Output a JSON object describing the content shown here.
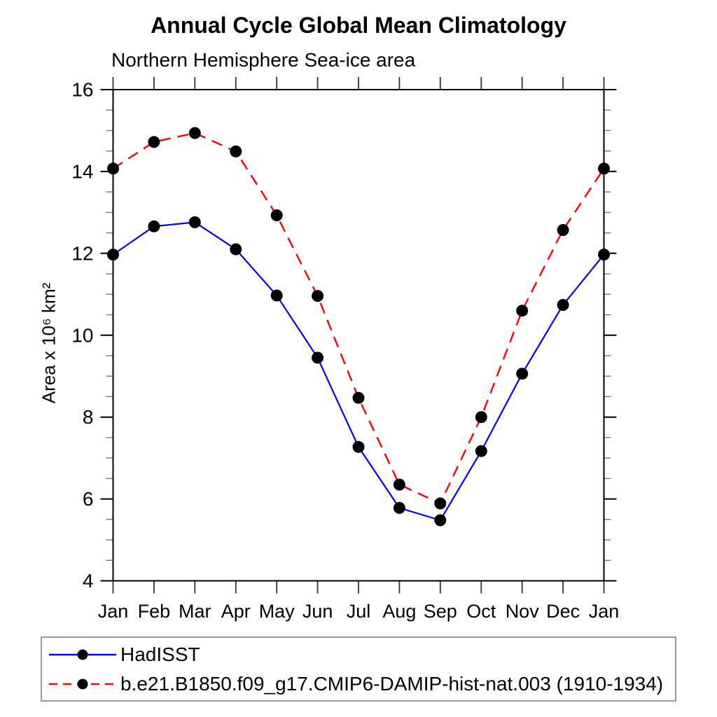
{
  "title": "Annual Cycle Global Mean Climatology",
  "subtitle": "Northern Hemisphere Sea-ice area",
  "chart_data": {
    "type": "line",
    "title": "Annual Cycle Global Mean Climatology",
    "subtitle": "Northern Hemisphere Sea-ice area",
    "ylabel": "Area x 10⁶ km²",
    "xlabel": "",
    "categories": [
      "Jan",
      "Feb",
      "Mar",
      "Apr",
      "May",
      "Jun",
      "Jul",
      "Aug",
      "Sep",
      "Oct",
      "Nov",
      "Dec",
      "Jan"
    ],
    "ylim": [
      4,
      16
    ],
    "ytick_labels": [
      4,
      6,
      8,
      10,
      12,
      14,
      16
    ],
    "ytick_minor_step": 0.5,
    "grid": false,
    "legend_position": "bottom",
    "series": [
      {
        "name": "HadISST",
        "color": "#0000ff",
        "style": "solid",
        "marker": "filled-circle",
        "marker_color": "#000000",
        "values": [
          11.97,
          12.66,
          12.76,
          12.1,
          10.97,
          9.45,
          7.27,
          5.78,
          5.48,
          7.17,
          9.06,
          10.74,
          11.97
        ]
      },
      {
        "name": "b.e21.B1850.f09_g17.CMIP6-DAMIP-hist-nat.003 (1910-1934)",
        "color": "#ff0000",
        "style": "dashed",
        "marker": "filled-circle",
        "marker_color": "#000000",
        "values": [
          14.07,
          14.72,
          14.94,
          14.49,
          12.93,
          10.96,
          8.47,
          6.35,
          5.89,
          8.0,
          10.6,
          12.57,
          14.07
        ]
      }
    ]
  }
}
